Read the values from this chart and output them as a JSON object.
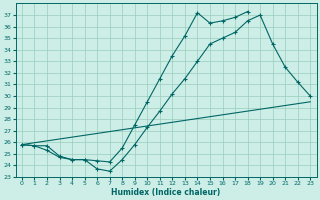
{
  "xlabel": "Humidex (Indice chaleur)",
  "bg_color": "#cceee6",
  "line_color": "#006666",
  "grid_color": "#99ccbb",
  "xlim": [
    -0.5,
    23.5
  ],
  "ylim": [
    23,
    38
  ],
  "yticks": [
    23,
    24,
    25,
    26,
    27,
    28,
    29,
    30,
    31,
    32,
    33,
    34,
    35,
    36,
    37
  ],
  "xticks": [
    0,
    1,
    2,
    3,
    4,
    5,
    6,
    7,
    8,
    9,
    10,
    11,
    12,
    13,
    14,
    15,
    16,
    17,
    18,
    19,
    20,
    21,
    22,
    23
  ],
  "curve_top_x": [
    0,
    1,
    2,
    3,
    4,
    5,
    6,
    7,
    8,
    9,
    10,
    11,
    12,
    13,
    14,
    15,
    16,
    17,
    18
  ],
  "curve_top_y": [
    25.8,
    25.7,
    25.7,
    24.8,
    24.5,
    24.5,
    24.4,
    24.3,
    25.5,
    27.5,
    29.5,
    31.5,
    33.5,
    35.2,
    37.2,
    36.3,
    36.5,
    36.8,
    37.3
  ],
  "curve_mid_x": [
    0,
    1,
    2,
    3,
    4,
    5,
    6,
    7,
    8,
    9,
    10,
    11,
    12,
    13,
    14,
    15,
    16,
    17,
    18,
    19,
    20,
    21,
    22,
    23
  ],
  "curve_mid_y": [
    25.8,
    25.7,
    25.3,
    24.7,
    24.5,
    24.5,
    23.7,
    23.5,
    24.5,
    25.8,
    27.3,
    28.7,
    30.2,
    31.5,
    33.0,
    34.5,
    35.0,
    35.5,
    36.5,
    37.0,
    34.5,
    32.5,
    31.2,
    30.0
  ],
  "curve_line_x": [
    0,
    23
  ],
  "curve_line_y": [
    25.8,
    29.5
  ]
}
